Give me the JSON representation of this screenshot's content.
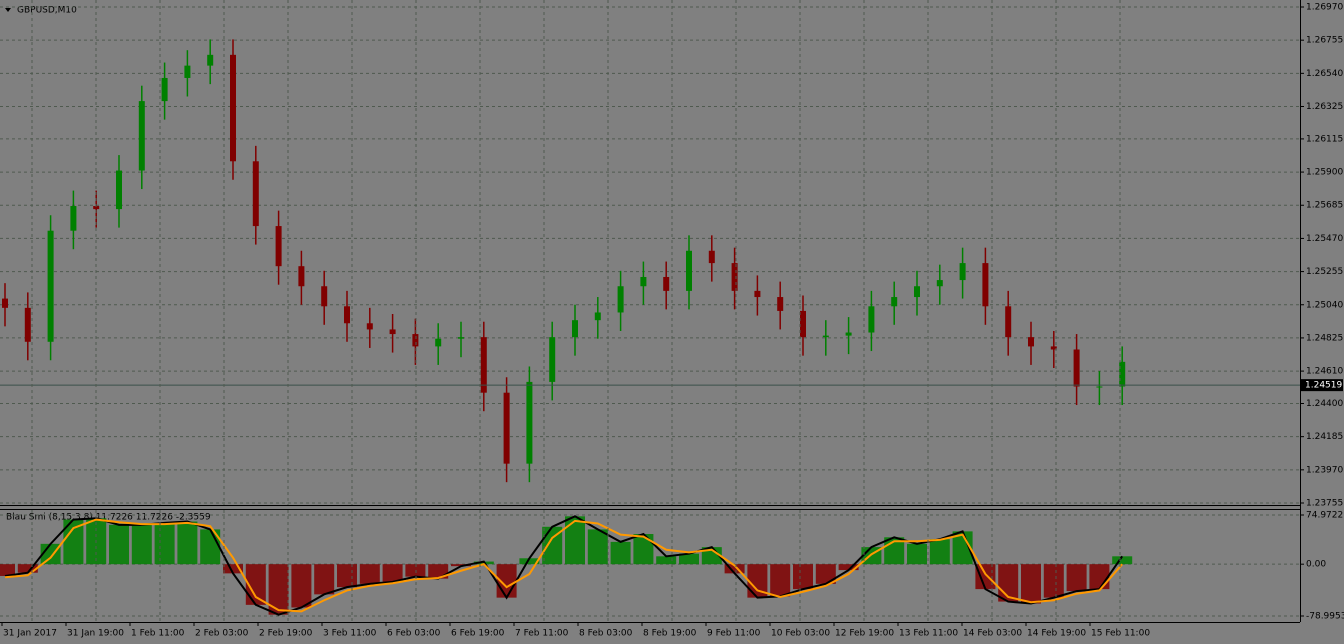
{
  "chart_data": [
    {
      "type": "candlestick",
      "title": "GBPUSD,M10",
      "up_color": "#008000",
      "down_color": "#800000",
      "grid": true,
      "ylim": [
        1.23755,
        1.2697
      ],
      "yticks": [
        {
          "value": 1.2697,
          "label": "1.26970"
        },
        {
          "value": 1.26755,
          "label": "1.26755"
        },
        {
          "value": 1.2654,
          "label": "1.26540"
        },
        {
          "value": 1.26325,
          "label": "1.26325"
        },
        {
          "value": 1.26115,
          "label": "1.26115"
        },
        {
          "value": 1.259,
          "label": "1.25900"
        },
        {
          "value": 1.25685,
          "label": "1.25685"
        },
        {
          "value": 1.2547,
          "label": "1.25470"
        },
        {
          "value": 1.25255,
          "label": "1.25255"
        },
        {
          "value": 1.2504,
          "label": "1.25040"
        },
        {
          "value": 1.24825,
          "label": "1.24825"
        },
        {
          "value": 1.2461,
          "label": "1.24610"
        },
        {
          "value": 1.244,
          "label": "1.24400"
        },
        {
          "value": 1.24185,
          "label": "1.24185"
        },
        {
          "value": 1.2397,
          "label": "1.23970"
        },
        {
          "value": 1.23755,
          "label": "1.23755"
        }
      ],
      "last_price": 1.24519,
      "candles": [
        [
          1.2508,
          1.2518,
          1.249,
          1.2502
        ],
        [
          1.2502,
          1.2512,
          1.2468,
          1.248
        ],
        [
          1.248,
          1.2562,
          1.2468,
          1.2552
        ],
        [
          1.2552,
          1.2578,
          1.254,
          1.2568
        ],
        [
          1.2568,
          1.2578,
          1.2554,
          1.2566
        ],
        [
          1.2566,
          1.2601,
          1.2554,
          1.2591
        ],
        [
          1.2591,
          1.2646,
          1.2579,
          1.2636
        ],
        [
          1.2636,
          1.2661,
          1.2624,
          1.2651
        ],
        [
          1.2651,
          1.2669,
          1.2639,
          1.2659
        ],
        [
          1.2659,
          1.2676,
          1.2647,
          1.2666
        ],
        [
          1.2666,
          1.2676,
          1.2585,
          1.2597
        ],
        [
          1.2597,
          1.2607,
          1.2543,
          1.2555
        ],
        [
          1.2555,
          1.2565,
          1.2517,
          1.2529
        ],
        [
          1.2529,
          1.2539,
          1.2504,
          1.2516
        ],
        [
          1.2516,
          1.2526,
          1.2491,
          1.2503
        ],
        [
          1.2503,
          1.2513,
          1.248,
          1.2492
        ],
        [
          1.2492,
          1.2502,
          1.2476,
          1.2488
        ],
        [
          1.2488,
          1.2498,
          1.2473,
          1.2485
        ],
        [
          1.2485,
          1.2495,
          1.2465,
          1.2477
        ],
        [
          1.2477,
          1.2492,
          1.2465,
          1.2482
        ],
        [
          1.2482,
          1.2493,
          1.247,
          1.2483
        ],
        [
          1.2483,
          1.2493,
          1.2435,
          1.2447
        ],
        [
          1.2447,
          1.2457,
          1.2389,
          1.2401
        ],
        [
          1.2401,
          1.2464,
          1.2389,
          1.2454
        ],
        [
          1.2454,
          1.2493,
          1.2442,
          1.2483
        ],
        [
          1.2483,
          1.2504,
          1.2471,
          1.2494
        ],
        [
          1.2494,
          1.2509,
          1.2482,
          1.2499
        ],
        [
          1.2499,
          1.2526,
          1.2487,
          1.2516
        ],
        [
          1.2516,
          1.2532,
          1.2504,
          1.2522
        ],
        [
          1.2522,
          1.2532,
          1.2501,
          1.2513
        ],
        [
          1.2513,
          1.2549,
          1.2501,
          1.2539
        ],
        [
          1.2539,
          1.2549,
          1.2519,
          1.2531
        ],
        [
          1.2531,
          1.2541,
          1.2501,
          1.2513
        ],
        [
          1.2513,
          1.2523,
          1.2497,
          1.2509
        ],
        [
          1.2509,
          1.2519,
          1.2488,
          1.25
        ],
        [
          1.25,
          1.251,
          1.2471,
          1.2483
        ],
        [
          1.2483,
          1.2494,
          1.2471,
          1.2484
        ],
        [
          1.2484,
          1.2496,
          1.2472,
          1.2486
        ],
        [
          1.2486,
          1.2513,
          1.2474,
          1.2503
        ],
        [
          1.2503,
          1.2519,
          1.2491,
          1.2509
        ],
        [
          1.2509,
          1.2526,
          1.2497,
          1.2516
        ],
        [
          1.2516,
          1.253,
          1.2504,
          1.252
        ],
        [
          1.252,
          1.2541,
          1.2508,
          1.2531
        ],
        [
          1.2531,
          1.2541,
          1.2491,
          1.2503
        ],
        [
          1.2503,
          1.2513,
          1.2471,
          1.2483
        ],
        [
          1.2483,
          1.2493,
          1.2465,
          1.2477
        ],
        [
          1.2477,
          1.2487,
          1.2463,
          1.2475
        ],
        [
          1.2475,
          1.2485,
          1.2439,
          1.2451
        ],
        [
          1.2451,
          1.2461,
          1.2439,
          1.2451
        ],
        [
          1.2451,
          1.2477,
          1.2439,
          1.2467
        ]
      ]
    },
    {
      "type": "histogram-lines",
      "title": "Blau Smi (8,15,3,8) 11.7226 11.7226 -2.3559",
      "ylim": [
        -78.9953,
        74.9722
      ],
      "yticks": [
        74.9722,
        {
          "value": 0,
          "label": "0.00"
        },
        -78.9953
      ],
      "up_color": "#008000",
      "down_color": "#800000",
      "categories": [
        "31 Jan 2017",
        "31 Jan 19:00",
        "1 Feb 11:00",
        "2 Feb 03:00",
        "2 Feb 19:00",
        "3 Feb 11:00",
        "6 Feb 03:00",
        "6 Feb 19:00",
        "7 Feb 11:00",
        "8 Feb 03:00",
        "8 Feb 19:00",
        "9 Feb 11:00",
        "10 Feb 03:00",
        "12 Feb 19:00",
        "13 Feb 11:00",
        "14 Feb 03:00",
        "14 Feb 19:00",
        "15 Feb 11:00"
      ],
      "series": [
        {
          "color": "#000000",
          "values": [
            -18,
            -13,
            31,
            68,
            70,
            60,
            60,
            63,
            65,
            53,
            -14,
            -62,
            -77,
            -66,
            -46,
            -35,
            -30,
            -27,
            -19,
            -22,
            -3,
            4,
            -51,
            9,
            57,
            73,
            53,
            34,
            46,
            12,
            16,
            26,
            -14,
            -51,
            -49,
            -38,
            -30,
            -9,
            26,
            41,
            31,
            38,
            50,
            -38,
            -57,
            -60,
            -51,
            -41,
            -38,
            12
          ]
        },
        {
          "color": "#ff9900",
          "values": [
            -20,
            -17,
            10,
            55,
            68,
            64,
            61,
            61,
            63,
            58,
            10,
            -50,
            -70,
            -72,
            -55,
            -40,
            -33,
            -29,
            -23,
            -21,
            -10,
            0,
            -35,
            -15,
            40,
            66,
            62,
            45,
            42,
            22,
            18,
            22,
            -2,
            -40,
            -50,
            -42,
            -33,
            -15,
            15,
            35,
            35,
            37,
            45,
            -15,
            -50,
            -58,
            -55,
            -45,
            -40,
            0
          ]
        }
      ]
    }
  ]
}
